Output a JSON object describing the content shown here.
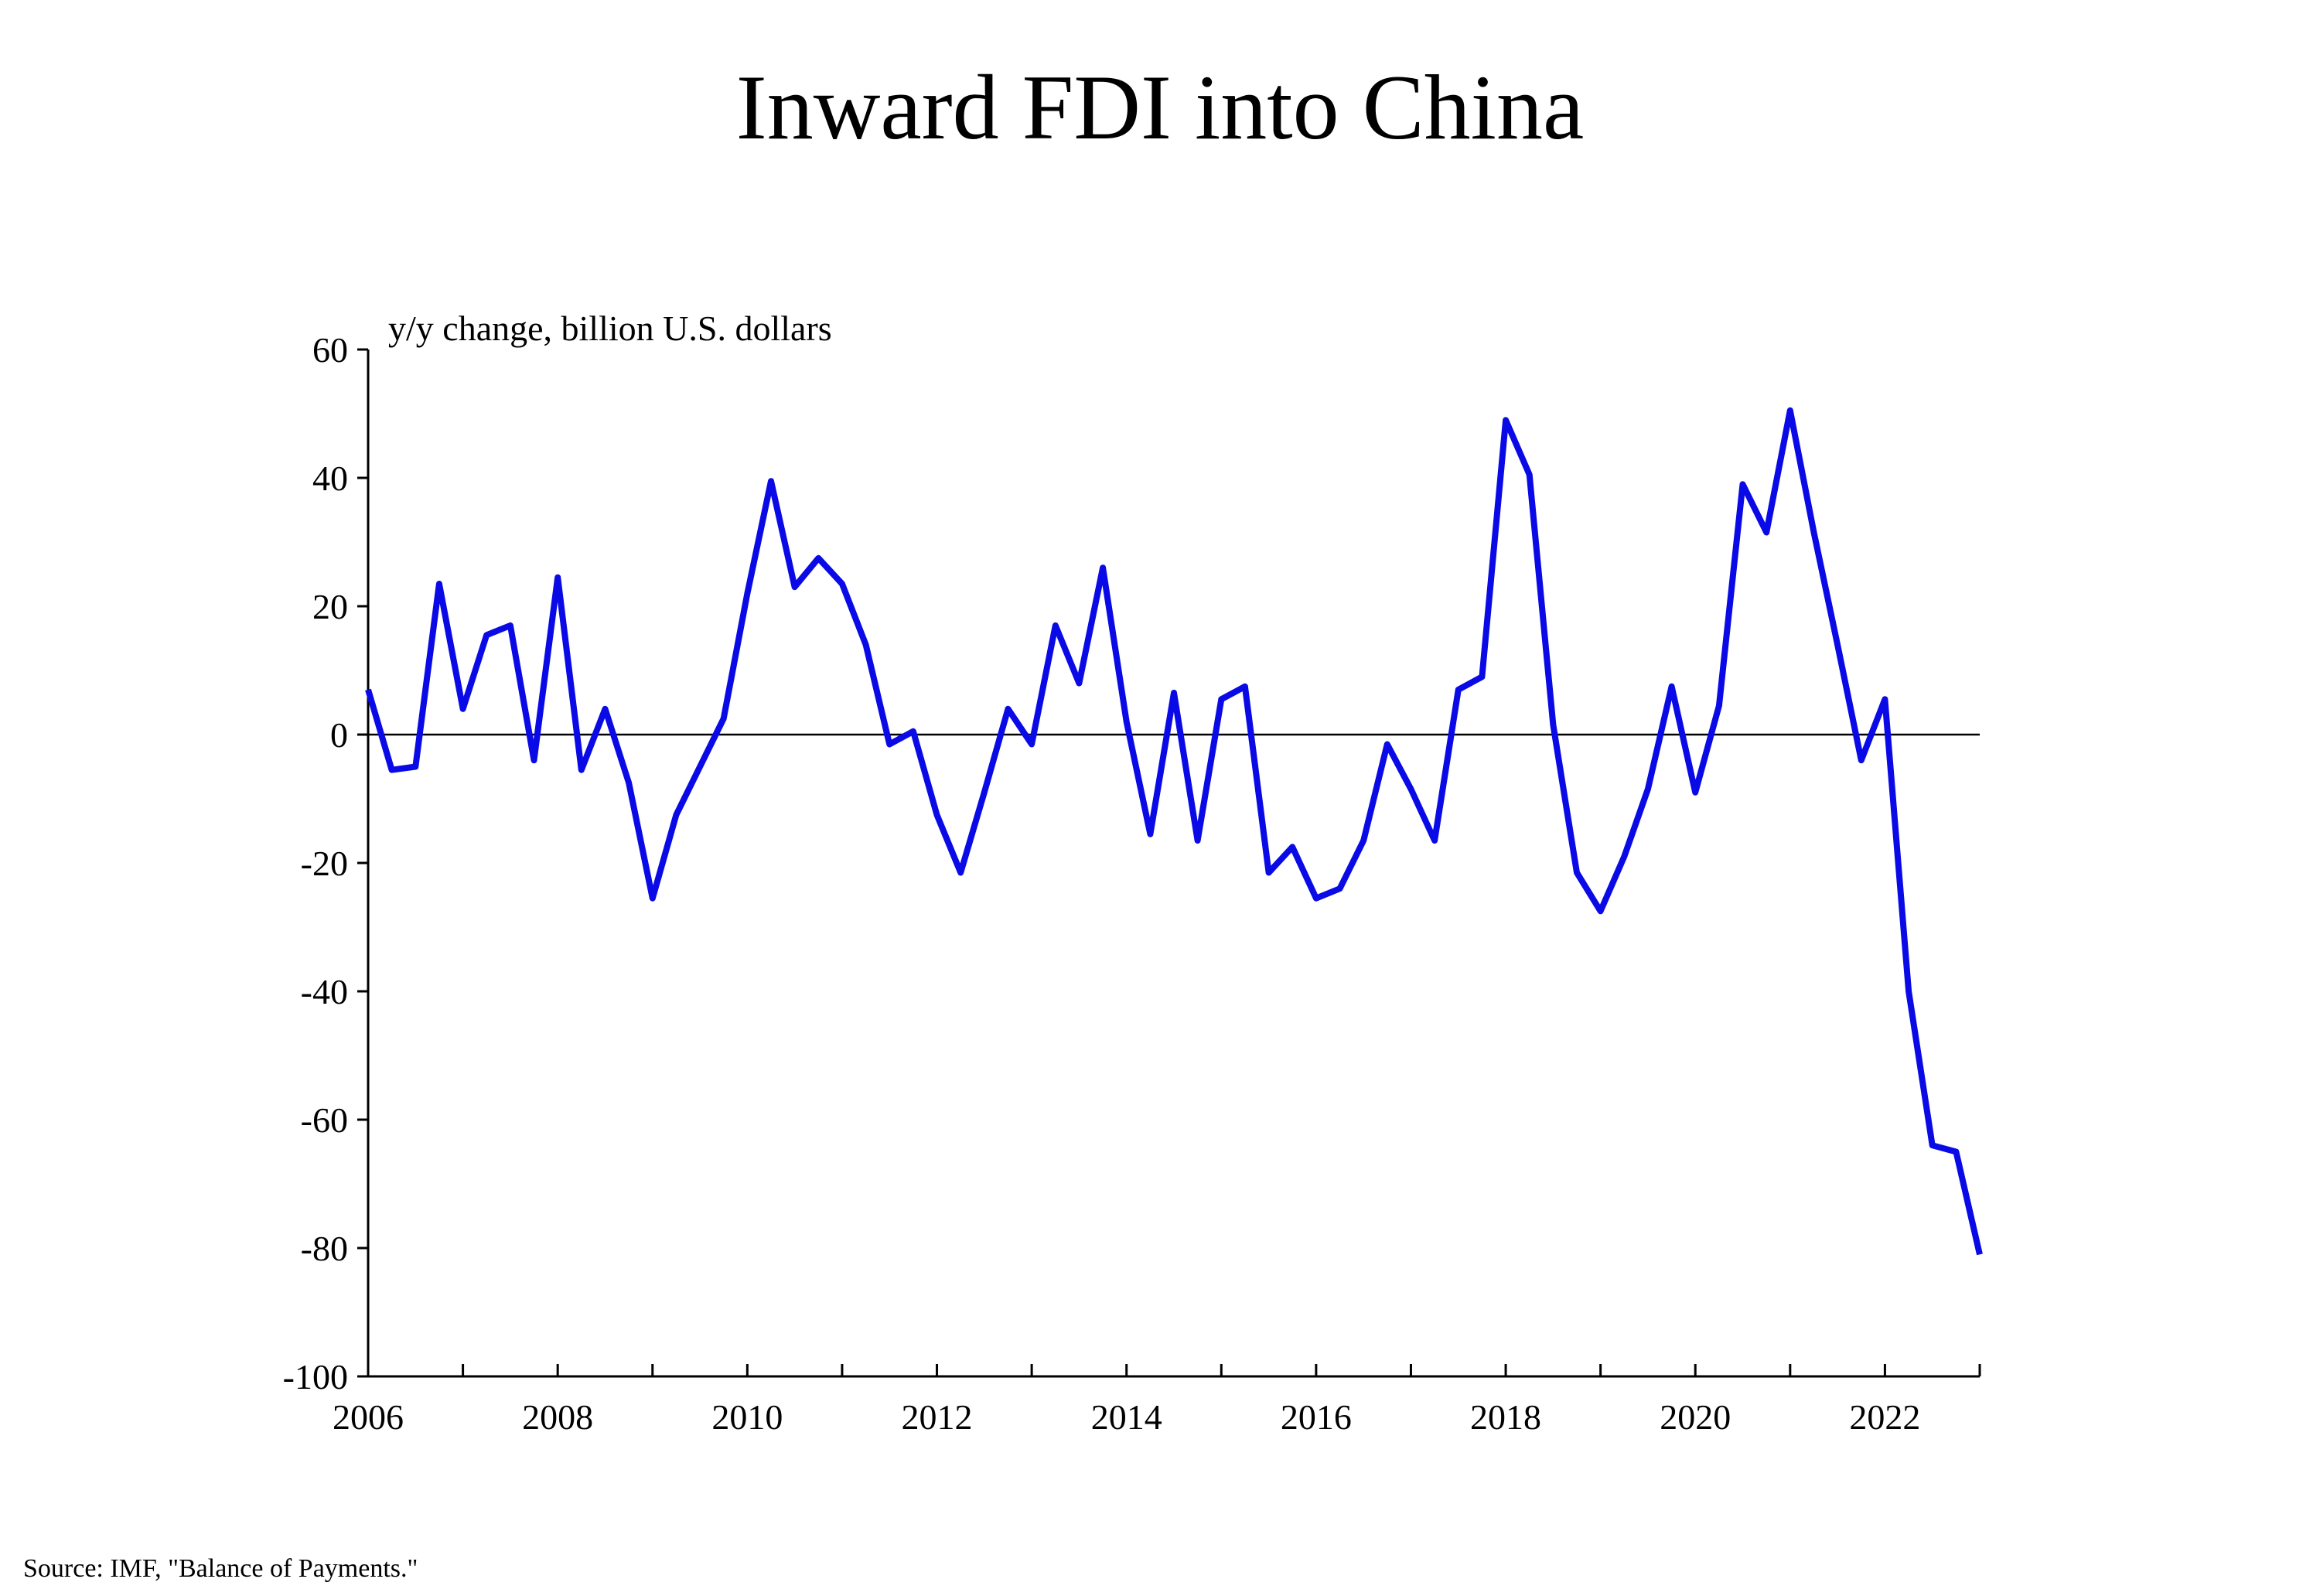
{
  "chart_data": {
    "type": "line",
    "title": "Inward FDI into China",
    "ylabel": "y/y change,  billion  U.S. dollars",
    "xlabel": "",
    "source": "Source: IMF, \"Balance of Payments.\"",
    "ylim": [
      -100,
      60
    ],
    "xlim": [
      2006,
      2023
    ],
    "y_ticks": [
      "60",
      "40",
      "20",
      "0",
      "-20",
      "-40",
      "-60",
      "-80",
      "-100"
    ],
    "x_ticks": [
      "2006",
      "2008",
      "2010",
      "2012",
      "2014",
      "2016",
      "2018",
      "2020",
      "2022"
    ],
    "grid": false,
    "line_color": "#0a0ae6",
    "series": [
      {
        "x": [
          2006.0,
          2006.25,
          2006.5,
          2006.75,
          2007.0,
          2007.25,
          2007.5,
          2007.75,
          2008.0,
          2008.25,
          2008.5,
          2008.75,
          2009.0,
          2009.25,
          2009.5,
          2009.75,
          2010.0,
          2010.25,
          2010.5,
          2010.75,
          2011.0,
          2011.25,
          2011.5,
          2011.75,
          2012.0,
          2012.25,
          2012.5,
          2012.75,
          2013.0,
          2013.25,
          2013.5,
          2013.75,
          2014.0,
          2014.25,
          2014.5,
          2014.75,
          2015.0,
          2015.25,
          2015.5,
          2015.75,
          2016.0,
          2016.25,
          2016.5,
          2016.75,
          2017.0,
          2017.25,
          2017.5,
          2017.75,
          2018.0,
          2018.25,
          2018.5,
          2018.75,
          2019.0,
          2019.25,
          2019.5,
          2019.75,
          2020.0,
          2020.25,
          2020.5,
          2020.75,
          2021.0,
          2021.25,
          2021.5,
          2021.75,
          2022.0,
          2022.25,
          2022.5,
          2022.75,
          2023.0
        ],
        "values": [
          7,
          -5.5,
          -5,
          23.5,
          4,
          15.5,
          17,
          -4,
          24.5,
          -5.5,
          4,
          -7.5,
          -25.5,
          -12.5,
          -5,
          2.5,
          22,
          39.5,
          23,
          27.5,
          23.5,
          14,
          -1.5,
          0.5,
          -12.5,
          -21.5,
          -9,
          4,
          -1.5,
          17,
          8,
          26,
          2,
          -15.5,
          6.5,
          -16.5,
          5.5,
          7.5,
          -21.5,
          -17.5,
          -25.5,
          -24,
          -16.5,
          -1.5,
          -8.5,
          -16.5,
          7,
          9,
          49,
          40.5,
          1.5,
          -21.5,
          -27.5,
          -19,
          -8.5,
          7.5,
          -9,
          4.5,
          39,
          31.5,
          50.5,
          31.5,
          14,
          -4,
          5.5,
          -40,
          -64,
          -65,
          -81
        ]
      }
    ]
  }
}
